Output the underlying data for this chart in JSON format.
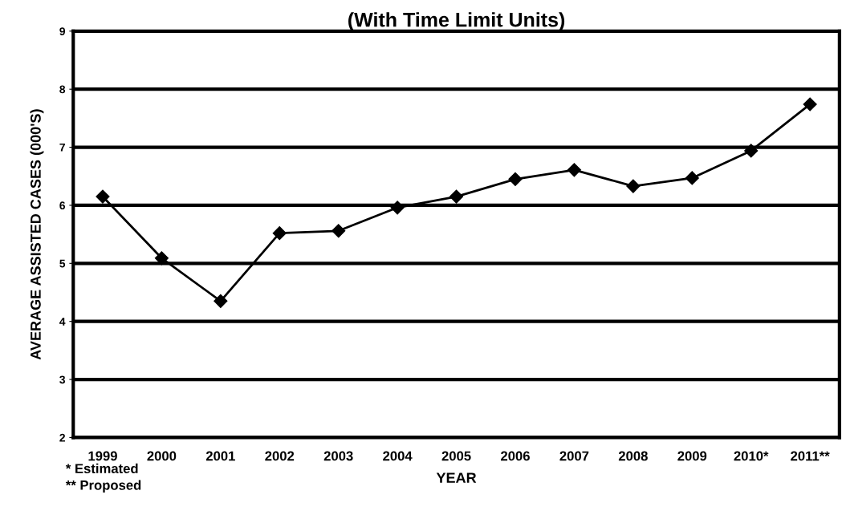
{
  "chart_data": {
    "type": "line",
    "title": "(With Time Limit Units)",
    "xlabel": "YEAR",
    "ylabel": "AVERAGE ASSISTED CASES (000'S)",
    "categories": [
      "1999",
      "2000",
      "2001",
      "2002",
      "2003",
      "2004",
      "2005",
      "2006",
      "2007",
      "2008",
      "2009",
      "2010*",
      "2011**"
    ],
    "series": [
      {
        "color": "#000000",
        "values": [
          6.15,
          5.09,
          4.35,
          5.52,
          5.56,
          5.96,
          6.15,
          6.45,
          6.61,
          6.33,
          6.47,
          6.94,
          7.74
        ]
      }
    ],
    "ylim": [
      2,
      9
    ],
    "yticks": [
      2,
      3,
      4,
      5,
      6,
      7,
      8,
      9
    ],
    "grid": "y",
    "marker": "diamond",
    "line_style": "solid",
    "legend": false,
    "annotations": [
      "* Estimated",
      "** Proposed"
    ]
  }
}
